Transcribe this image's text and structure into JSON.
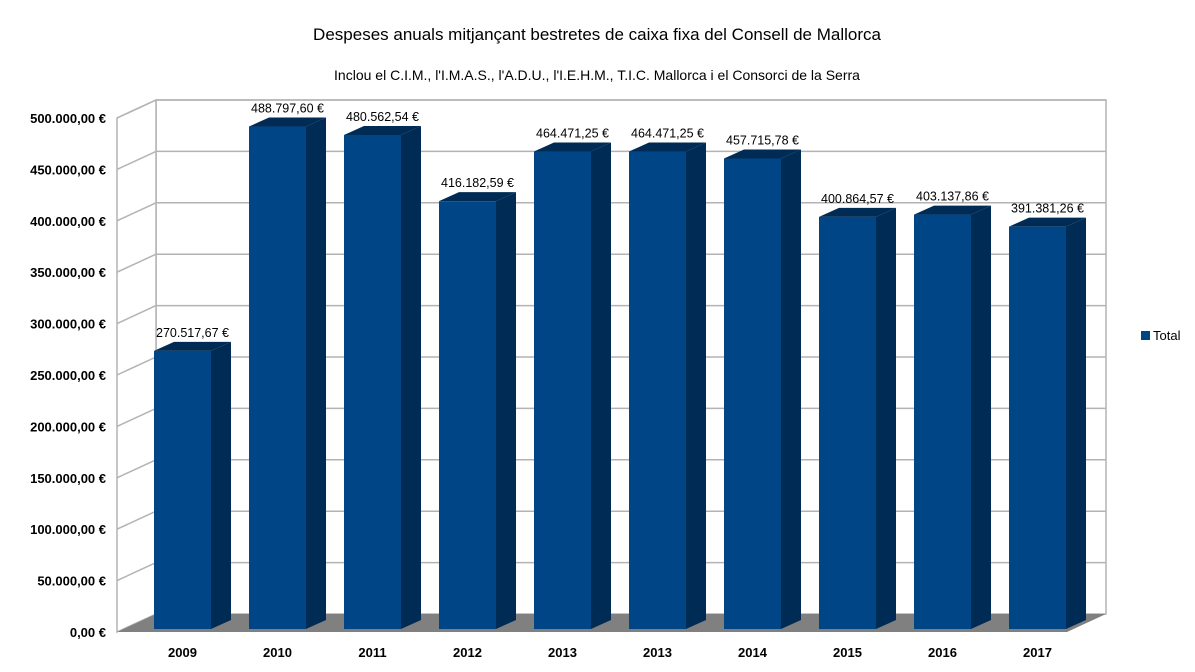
{
  "chart_data": {
    "type": "bar",
    "style": "3d-column",
    "title": "Despeses anuals mitjançant bestretes de caixa fixa del Consell de Mallorca",
    "subtitle": "Inclou el C.I.M., l'I.M.A.S., l'A.D.U., l'I.E.H.M., T.I.C. Mallorca i el Consorci de la Serra",
    "xlabel": "",
    "ylabel": "",
    "categories": [
      "2009",
      "2010",
      "2011",
      "2012",
      "2013",
      "2013",
      "2014",
      "2015",
      "2016",
      "2017"
    ],
    "series": [
      {
        "name": "Total",
        "color": "#004586",
        "side_color": "#002b54",
        "values": [
          270517.67,
          488797.6,
          480562.54,
          416182.59,
          464471.25,
          464471.25,
          457715.78,
          400864.57,
          403137.86,
          391381.26
        ],
        "data_labels": [
          "270.517,67 €",
          "488.797,60 €",
          "480.562,54 €",
          "416.182,59 €",
          "464.471,25 €",
          "464.471,25 €",
          "457.715,78 €",
          "400.864,57 €",
          "403.137,86 €",
          "391.381,26 €"
        ]
      }
    ],
    "ylim": [
      0,
      500000
    ],
    "yticks": [
      0,
      50000,
      100000,
      150000,
      200000,
      250000,
      300000,
      350000,
      400000,
      450000,
      500000
    ],
    "ytick_labels": [
      "0,00 €",
      "50.000,00 €",
      "100.000,00 €",
      "150.000,00 €",
      "200.000,00 €",
      "250.000,00 €",
      "300.000,00 €",
      "350.000,00 €",
      "400.000,00 €",
      "450.000,00 €",
      "500.000,00 €"
    ],
    "grid": true,
    "legend": {
      "position": "right",
      "entries": [
        "Total"
      ]
    },
    "colors": {
      "grid": "#b3b3b3",
      "floor": "#808080",
      "wall": "#ffffff"
    }
  }
}
